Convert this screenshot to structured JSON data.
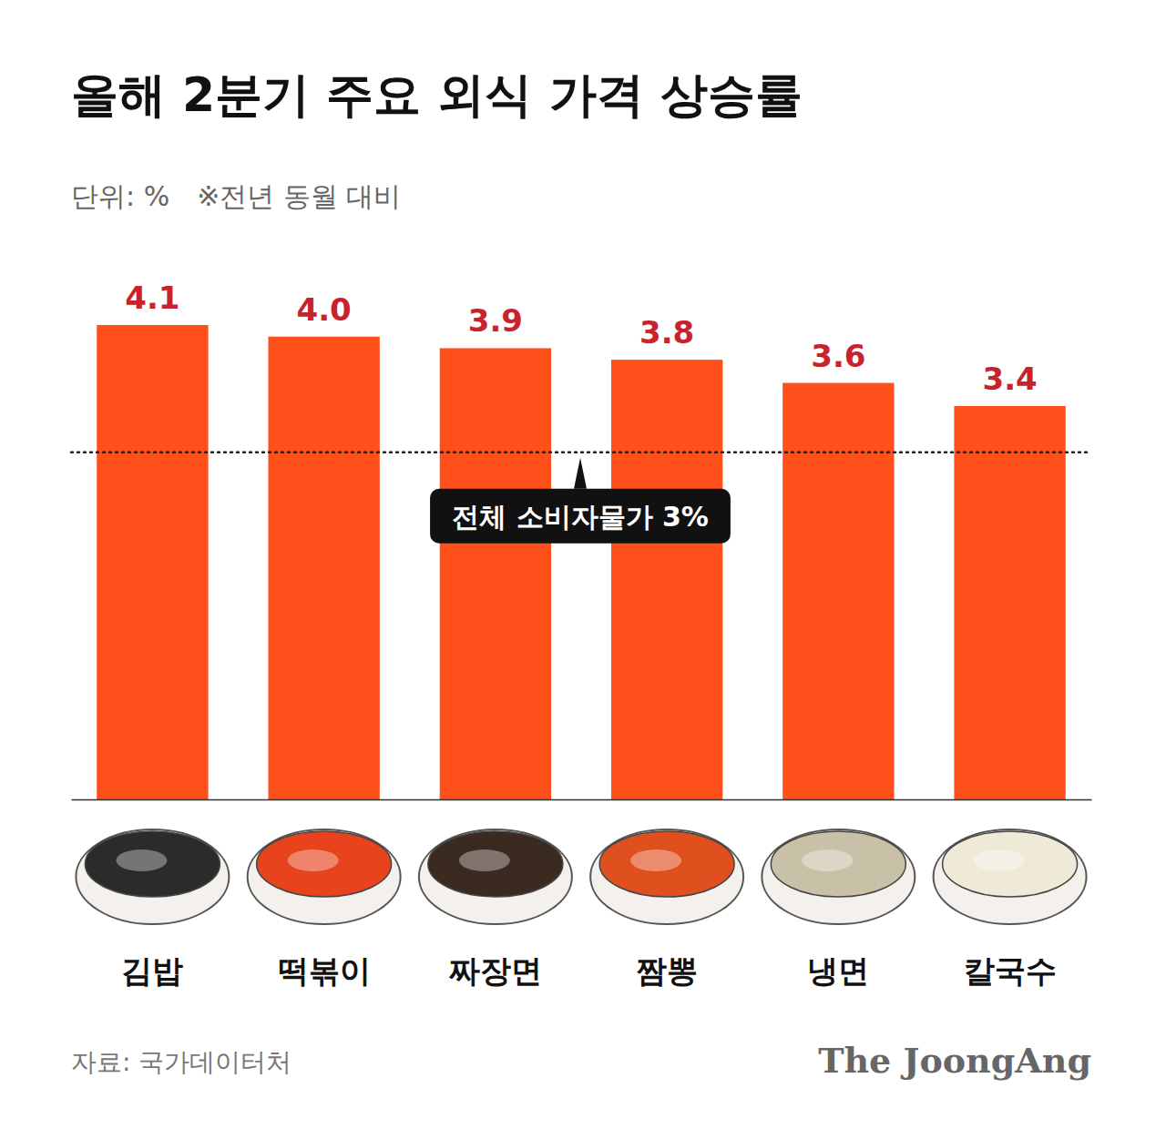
{
  "chart_data": {
    "type": "bar",
    "title": "올해 2분기 주요 외식 가격 상승률",
    "subtitle": [
      "단위: %",
      "※전년 동월 대비"
    ],
    "categories": [
      "김밥",
      "떡볶이",
      "짜장면",
      "짬뽕",
      "냉면",
      "칼국수"
    ],
    "values": [
      4.1,
      4.0,
      3.9,
      3.8,
      3.6,
      3.4
    ],
    "value_labels": [
      "4.1",
      "4.0",
      "3.9",
      "3.8",
      "3.6",
      "3.4"
    ],
    "color": "#ff4f1a",
    "ylim": [
      0,
      4.1
    ],
    "data_labels": true,
    "tick_labels": "x",
    "annotations": [
      {
        "value": 3,
        "label": "전체 소비자물가 3%"
      }
    ],
    "source": "자료: 국가데이터처",
    "credit": "The JoongAng"
  }
}
